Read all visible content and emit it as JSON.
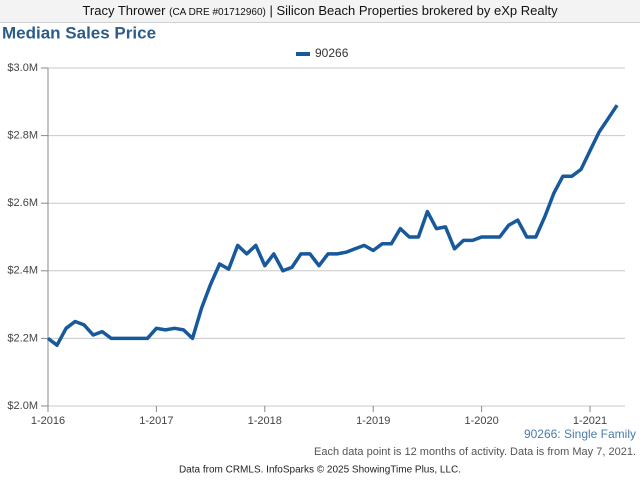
{
  "header": {
    "name": "Tracy Thrower",
    "license": "(CA DRE #01712960)",
    "company": "| Silicon Beach Properties brokered by eXp Realty"
  },
  "chart_data": {
    "type": "line",
    "title": "Median Sales Price",
    "categories": [
      "1-2016",
      null,
      null,
      null,
      null,
      null,
      null,
      null,
      null,
      null,
      null,
      null,
      "1-2017",
      null,
      null,
      null,
      null,
      null,
      null,
      null,
      null,
      null,
      null,
      null,
      "1-2018",
      null,
      null,
      null,
      null,
      null,
      null,
      null,
      null,
      null,
      null,
      null,
      "1-2019",
      null,
      null,
      null,
      null,
      null,
      null,
      null,
      null,
      null,
      null,
      null,
      "1-2020",
      null,
      null,
      null,
      null,
      null,
      null,
      null,
      null,
      null,
      null,
      null,
      "1-2021",
      null,
      null,
      null
    ],
    "series": [
      {
        "name": "90266",
        "color": "#17599b",
        "values": [
          2.2,
          2.18,
          2.23,
          2.25,
          2.24,
          2.21,
          2.22,
          2.2,
          2.2,
          2.2,
          2.2,
          2.2,
          2.23,
          2.225,
          2.23,
          2.225,
          2.2,
          2.29,
          2.36,
          2.42,
          2.405,
          2.475,
          2.45,
          2.475,
          2.415,
          2.45,
          2.4,
          2.41,
          2.45,
          2.45,
          2.415,
          2.45,
          2.45,
          2.455,
          2.465,
          2.475,
          2.46,
          2.48,
          2.48,
          2.525,
          2.5,
          2.5,
          2.575,
          2.525,
          2.53,
          2.465,
          2.49,
          2.49,
          2.5,
          2.5,
          2.5,
          2.535,
          2.55,
          2.5,
          2.5,
          2.56,
          2.63,
          2.68,
          2.68,
          2.7,
          2.755,
          2.81,
          2.85,
          2.89
        ]
      }
    ],
    "ylim": [
      2.0,
      3.0
    ],
    "yticks": [
      {
        "value": 2.0,
        "label": "$2.0M"
      },
      {
        "value": 2.2,
        "label": "$2.2M"
      },
      {
        "value": 2.4,
        "label": "$2.4M"
      },
      {
        "value": 2.6,
        "label": "$2.6M"
      },
      {
        "value": 2.8,
        "label": "$2.8M"
      },
      {
        "value": 3.0,
        "label": "$3.0M"
      }
    ],
    "grid": true,
    "annotations": [
      "90266: Single Family",
      "Each data point is 12 months of activity. Data is from May 7, 2021."
    ]
  },
  "footer": "Data from CRMLS. InfoSparks © 2025 ShowingTime Plus, LLC."
}
